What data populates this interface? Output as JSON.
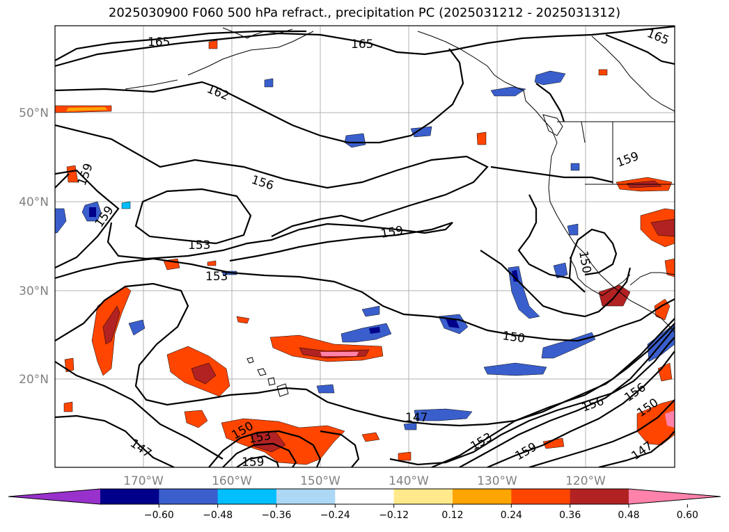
{
  "title": "2025030900 F060 500 hPa refract., precipitation PC (2025031212 - 2025031312)",
  "map": {
    "lat_labels": [
      "50°N",
      "40°N",
      "30°N",
      "20°N"
    ],
    "lon_labels": [
      "170°W",
      "160°W",
      "150°W",
      "140°W",
      "130°W",
      "120°W"
    ],
    "contour_labels": [
      "165",
      "165",
      "165",
      "162",
      "159",
      "159",
      "156",
      "159",
      "159",
      "153",
      "153",
      "150",
      "150",
      "147",
      "153",
      "156",
      "156",
      "159",
      "147",
      "150",
      "159",
      "147",
      "153",
      "150"
    ],
    "grid": true,
    "colors": {
      "contour": "#000000",
      "coast": "#000000",
      "grid": "#b0b0b0",
      "tick_label": "#808080"
    }
  },
  "colorbar": {
    "tick_labels": [
      "−0.60",
      "−0.48",
      "−0.36",
      "−0.24",
      "−0.12",
      "0.12",
      "0.24",
      "0.36",
      "0.48",
      "0.60"
    ],
    "colors": [
      "#9932cc",
      "#00008b",
      "#3a5fcd",
      "#00bfff",
      "#add8f5",
      "#ffffff",
      "#ffe98a",
      "#ffa500",
      "#ff4500",
      "#b22222",
      "#ff82ab"
    ]
  }
}
